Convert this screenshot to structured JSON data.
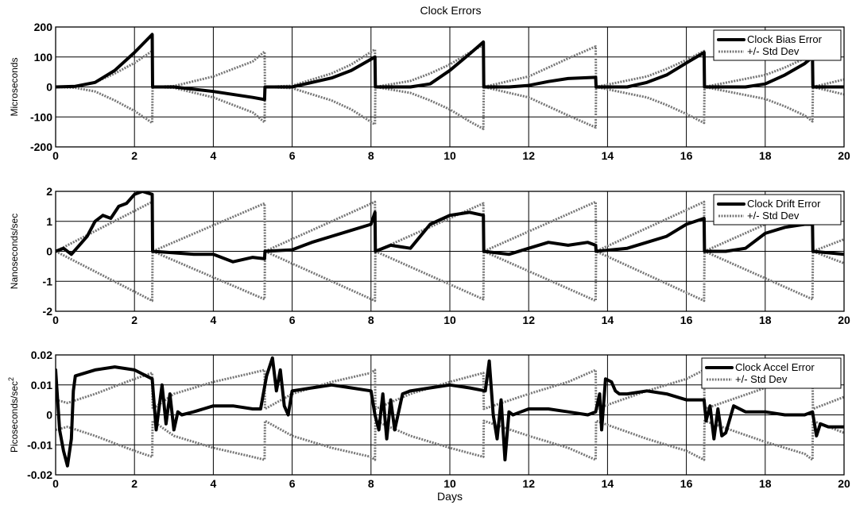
{
  "figure": {
    "title": "Clock Errors"
  },
  "chart_data": [
    {
      "type": "line",
      "title": "Clock Errors",
      "xlabel": "",
      "ylabel": "Microseconds",
      "xlim": [
        0,
        20
      ],
      "ylim": [
        -200,
        200
      ],
      "xticks": [
        0,
        2,
        4,
        6,
        8,
        10,
        12,
        14,
        16,
        18,
        20
      ],
      "yticks": [
        -200,
        -100,
        0,
        100,
        200
      ],
      "grid": true,
      "legend": {
        "position": "top-right",
        "entries": [
          "Clock Bias Error",
          "+/- Std Dev"
        ]
      },
      "series": [
        {
          "name": "Clock Bias Error",
          "style": "solid",
          "x": [
            0,
            0.5,
            1.0,
            1.5,
            2.0,
            2.45,
            2.46,
            3.0,
            4.0,
            5.0,
            5.3,
            5.31,
            6.0,
            7.0,
            7.5,
            8.1,
            8.11,
            9.0,
            9.5,
            10.0,
            10.5,
            10.85,
            10.86,
            11.5,
            12.0,
            12.5,
            13.0,
            13.7,
            13.71,
            14.5,
            15.0,
            15.5,
            16.0,
            16.45,
            16.46,
            17.5,
            18.0,
            18.5,
            19.0,
            19.2,
            19.21,
            20.0
          ],
          "y": [
            0,
            2,
            15,
            55,
            115,
            175,
            0,
            0,
            -15,
            -35,
            -42,
            0,
            0,
            30,
            55,
            100,
            0,
            0,
            10,
            55,
            110,
            150,
            0,
            0,
            5,
            18,
            28,
            32,
            0,
            0,
            15,
            40,
            80,
            115,
            0,
            0,
            10,
            40,
            78,
            100,
            0,
            0
          ]
        },
        {
          "name": "+/- Std Dev",
          "style": "dotted",
          "x": [
            0,
            0.5,
            1.0,
            1.5,
            2.0,
            2.45,
            2.46,
            3.0,
            4.0,
            5.0,
            5.3,
            5.31,
            6.0,
            7.0,
            7.5,
            8.1,
            8.11,
            9.0,
            9.5,
            10.0,
            10.5,
            10.85,
            10.86,
            12.0,
            12.5,
            13.0,
            13.7,
            13.71,
            15.0,
            15.5,
            16.0,
            16.45,
            16.46,
            18.0,
            18.5,
            19.0,
            19.2,
            19.21,
            20.0
          ],
          "y": [
            0,
            3,
            15,
            45,
            80,
            120,
            0,
            3,
            35,
            85,
            118,
            0,
            4,
            45,
            75,
            125,
            0,
            20,
            45,
            75,
            115,
            140,
            0,
            35,
            65,
            95,
            135,
            0,
            35,
            60,
            90,
            120,
            0,
            40,
            65,
            95,
            115,
            0,
            25
          ]
        },
        {
          "name": "",
          "style": "dotted",
          "x": [
            0,
            0.5,
            1.0,
            1.5,
            2.0,
            2.45,
            2.46,
            3.0,
            4.0,
            5.0,
            5.3,
            5.31,
            6.0,
            7.0,
            7.5,
            8.1,
            8.11,
            9.0,
            9.5,
            10.0,
            10.5,
            10.85,
            10.86,
            12.0,
            12.5,
            13.0,
            13.7,
            13.71,
            15.0,
            15.5,
            16.0,
            16.45,
            16.46,
            18.0,
            18.5,
            19.0,
            19.2,
            19.21,
            20.0
          ],
          "y": [
            0,
            -3,
            -15,
            -45,
            -80,
            -120,
            0,
            -3,
            -35,
            -85,
            -118,
            0,
            -4,
            -45,
            -75,
            -125,
            0,
            -20,
            -45,
            -75,
            -115,
            -140,
            0,
            -35,
            -65,
            -95,
            -135,
            0,
            -35,
            -60,
            -90,
            -120,
            0,
            -40,
            -65,
            -95,
            -115,
            0,
            -25
          ]
        }
      ]
    },
    {
      "type": "line",
      "title": "",
      "xlabel": "",
      "ylabel": "Nanoseconds/sec",
      "xlim": [
        0,
        20
      ],
      "ylim": [
        -2,
        2
      ],
      "xticks": [
        0,
        2,
        4,
        6,
        8,
        10,
        12,
        14,
        16,
        18,
        20
      ],
      "yticks": [
        -2,
        -1,
        0,
        1,
        2
      ],
      "grid": true,
      "legend": {
        "position": "top-right",
        "entries": [
          "Clock Drift Error",
          "+/- Std Dev"
        ]
      },
      "series": [
        {
          "name": "Clock Drift Error",
          "style": "solid",
          "x": [
            0,
            0.2,
            0.4,
            0.6,
            0.8,
            1.0,
            1.2,
            1.4,
            1.6,
            1.8,
            2.0,
            2.2,
            2.45,
            2.46,
            3.0,
            3.5,
            4.0,
            4.5,
            5.0,
            5.3,
            5.31,
            6.0,
            6.5,
            7.0,
            7.5,
            8.0,
            8.1,
            8.11,
            8.5,
            9.0,
            9.5,
            10.0,
            10.5,
            10.85,
            10.86,
            11.5,
            12.0,
            12.5,
            13.0,
            13.5,
            13.7,
            13.71,
            14.5,
            15.0,
            15.5,
            16.0,
            16.45,
            16.46,
            17.0,
            17.5,
            18.0,
            18.5,
            19.0,
            19.2,
            19.21,
            20.0
          ],
          "y": [
            0,
            0.1,
            -0.1,
            0.2,
            0.5,
            1.0,
            1.2,
            1.1,
            1.5,
            1.6,
            1.9,
            2.0,
            1.9,
            0,
            -0.05,
            -0.1,
            -0.1,
            -0.35,
            -0.2,
            -0.25,
            0,
            0.05,
            0.3,
            0.5,
            0.7,
            0.9,
            1.3,
            0,
            0.2,
            0.1,
            0.9,
            1.2,
            1.3,
            1.2,
            0,
            -0.1,
            0.1,
            0.3,
            0.2,
            0.3,
            0.2,
            0,
            0.1,
            0.3,
            0.5,
            0.9,
            1.1,
            0,
            0,
            0.1,
            0.6,
            0.8,
            0.9,
            0.9,
            0,
            -0.1
          ]
        },
        {
          "name": "+/- Std Dev",
          "style": "dotted",
          "x": [
            0,
            2.45,
            2.46,
            5.3,
            5.31,
            8.1,
            8.11,
            10.85,
            10.86,
            13.7,
            13.71,
            16.45,
            16.46,
            19.2,
            19.21,
            20.0
          ],
          "y": [
            0,
            1.65,
            0,
            1.6,
            0,
            1.65,
            0,
            1.6,
            0,
            1.65,
            0,
            1.65,
            0,
            1.6,
            0,
            0.4
          ]
        },
        {
          "name": "",
          "style": "dotted",
          "x": [
            0,
            2.45,
            2.46,
            5.3,
            5.31,
            8.1,
            8.11,
            10.85,
            10.86,
            13.7,
            13.71,
            16.45,
            16.46,
            19.2,
            19.21,
            20.0
          ],
          "y": [
            0,
            -1.65,
            0,
            -1.6,
            0,
            -1.65,
            0,
            -1.6,
            0,
            -1.65,
            0,
            -1.65,
            0,
            -1.6,
            0,
            -0.4
          ]
        }
      ]
    },
    {
      "type": "line",
      "title": "",
      "xlabel": "Days",
      "ylabel": "Picoseconds/sec",
      "ylabel_sup": "2",
      "xlim": [
        0,
        20
      ],
      "ylim": [
        -0.02,
        0.02
      ],
      "xticks": [
        0,
        2,
        4,
        6,
        8,
        10,
        12,
        14,
        16,
        18,
        20
      ],
      "yticks": [
        -0.02,
        -0.01,
        0,
        0.01,
        0.02
      ],
      "grid": true,
      "legend": {
        "position": "top-right",
        "entries": [
          "Clock Accel Error",
          "+/- Std Dev"
        ]
      },
      "series": [
        {
          "name": "Clock Accel Error",
          "style": "solid",
          "x": [
            0,
            0.1,
            0.2,
            0.3,
            0.4,
            0.45,
            0.5,
            1.0,
            1.5,
            2.0,
            2.45,
            2.55,
            2.7,
            2.8,
            2.9,
            3.0,
            3.1,
            3.2,
            3.5,
            4.0,
            4.5,
            5.0,
            5.2,
            5.35,
            5.5,
            5.6,
            5.7,
            5.8,
            5.9,
            6.0,
            6.5,
            7.0,
            7.5,
            8.0,
            8.1,
            8.2,
            8.3,
            8.4,
            8.5,
            8.6,
            8.8,
            9.0,
            9.5,
            10.0,
            10.5,
            10.9,
            11.0,
            11.1,
            11.2,
            11.3,
            11.4,
            11.5,
            11.6,
            12.0,
            12.5,
            13.0,
            13.5,
            13.7,
            13.8,
            13.85,
            13.95,
            14.1,
            14.2,
            14.3,
            14.5,
            15.0,
            15.5,
            16.0,
            16.45,
            16.5,
            16.6,
            16.7,
            16.8,
            16.9,
            17.0,
            17.2,
            17.5,
            18.0,
            18.5,
            19.0,
            19.2,
            19.3,
            19.4,
            19.6,
            20.0
          ],
          "y": [
            0.015,
            -0.005,
            -0.012,
            -0.017,
            -0.008,
            0.008,
            0.013,
            0.015,
            0.016,
            0.015,
            0.012,
            -0.005,
            0.01,
            -0.003,
            0.007,
            -0.005,
            0.001,
            0.0,
            0.001,
            0.003,
            0.003,
            0.002,
            0.002,
            0.013,
            0.019,
            0.008,
            0.015,
            0.003,
            0.0,
            0.008,
            0.009,
            0.01,
            0.009,
            0.008,
            0.0,
            -0.005,
            0.007,
            -0.008,
            0.005,
            -0.005,
            0.007,
            0.008,
            0.009,
            0.01,
            0.009,
            0.008,
            0.018,
            0.0,
            -0.008,
            0.005,
            -0.015,
            0.001,
            0.0,
            0.002,
            0.002,
            0.001,
            0.0,
            0.001,
            0.007,
            -0.005,
            0.012,
            0.011,
            0.008,
            0.007,
            0.007,
            0.008,
            0.007,
            0.005,
            0.005,
            -0.002,
            0.003,
            -0.008,
            0.002,
            -0.007,
            -0.006,
            0.003,
            0.001,
            0.001,
            0.0,
            0.0,
            0.001,
            -0.007,
            -0.003,
            -0.004,
            -0.004
          ]
        },
        {
          "name": "+/- Std Dev",
          "style": "dotted",
          "x": [
            0,
            0.3,
            1.0,
            2.0,
            2.45,
            2.46,
            3.0,
            4.0,
            5.0,
            5.3,
            5.31,
            6.0,
            7.0,
            8.0,
            8.1,
            8.11,
            9.0,
            10.0,
            10.85,
            10.86,
            12.0,
            13.0,
            13.7,
            13.71,
            15.0,
            16.0,
            16.45,
            16.46,
            18.0,
            19.0,
            19.2,
            19.21,
            20.0
          ],
          "y": [
            0.005,
            0.004,
            0.007,
            0.012,
            0.014,
            0.002,
            0.007,
            0.011,
            0.014,
            0.015,
            0.002,
            0.007,
            0.011,
            0.014,
            0.015,
            0.002,
            0.007,
            0.011,
            0.014,
            0.002,
            0.007,
            0.011,
            0.015,
            0.002,
            0.008,
            0.012,
            0.015,
            0.002,
            0.009,
            0.013,
            0.015,
            0.002,
            0.006
          ]
        },
        {
          "name": "",
          "style": "dotted",
          "x": [
            0,
            0.3,
            1.0,
            2.0,
            2.45,
            2.46,
            3.0,
            4.0,
            5.0,
            5.3,
            5.31,
            6.0,
            7.0,
            8.0,
            8.1,
            8.11,
            9.0,
            10.0,
            10.85,
            10.86,
            12.0,
            13.0,
            13.7,
            13.71,
            15.0,
            16.0,
            16.45,
            16.46,
            18.0,
            19.0,
            19.2,
            19.21,
            20.0
          ],
          "y": [
            -0.005,
            -0.004,
            -0.007,
            -0.012,
            -0.014,
            -0.002,
            -0.007,
            -0.011,
            -0.014,
            -0.015,
            -0.002,
            -0.007,
            -0.011,
            -0.014,
            -0.015,
            -0.002,
            -0.007,
            -0.011,
            -0.014,
            -0.002,
            -0.007,
            -0.011,
            -0.015,
            -0.002,
            -0.008,
            -0.012,
            -0.015,
            -0.002,
            -0.009,
            -0.013,
            -0.015,
            -0.002,
            -0.006
          ]
        }
      ]
    }
  ]
}
